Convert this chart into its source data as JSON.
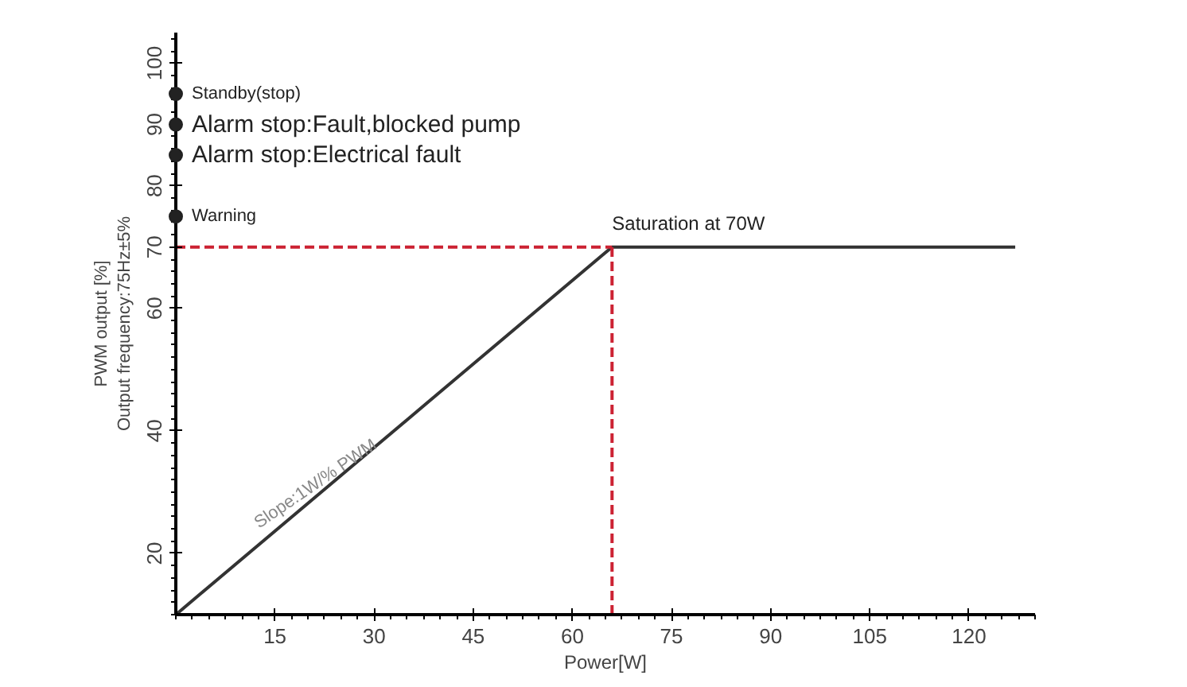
{
  "chart_data": {
    "type": "line",
    "xlabel": "Power[W]",
    "ylabel": "PWM output [%]\nOutput frequency:75Hz±5%",
    "xlim": [
      0,
      130
    ],
    "ylim": [
      10,
      105
    ],
    "xticks": [
      15,
      30,
      45,
      60,
      75,
      90,
      105,
      120
    ],
    "yticks": [
      20,
      40,
      60,
      70,
      80,
      90,
      100
    ],
    "grid": false,
    "marker": "none",
    "line_style": "solid",
    "series": [
      {
        "color": "#333333",
        "x": [
          0,
          66,
          127
        ],
        "values": [
          10,
          70,
          70
        ]
      },
      {
        "color": "#cc2233",
        "x": [
          0,
          66
        ],
        "values": [
          70,
          70
        ],
        "line_style": "dashed"
      },
      {
        "color": "#cc2233",
        "x": [
          66,
          66
        ],
        "values": [
          10,
          70
        ],
        "line_style": "dashed"
      },
      {
        "type": "scatter",
        "color": "#222222",
        "marker": "circle",
        "x": [
          0,
          0,
          0,
          0
        ],
        "values": [
          95,
          90,
          85,
          75
        ]
      }
    ],
    "annotations": [
      {
        "text": "Standby(stop)",
        "x": 0,
        "y": 95
      },
      {
        "text": "Alarm stop:Fault,blocked pump",
        "x": 0,
        "y": 90
      },
      {
        "text": "Alarm stop:Electrical fault",
        "x": 0,
        "y": 85
      },
      {
        "text": "Warning",
        "x": 0,
        "y": 75
      },
      {
        "text": "Saturation at 70W",
        "x": 66,
        "y": 70
      },
      {
        "text": "Slope:1W/% PWM",
        "x": 22,
        "y": 30
      }
    ]
  }
}
